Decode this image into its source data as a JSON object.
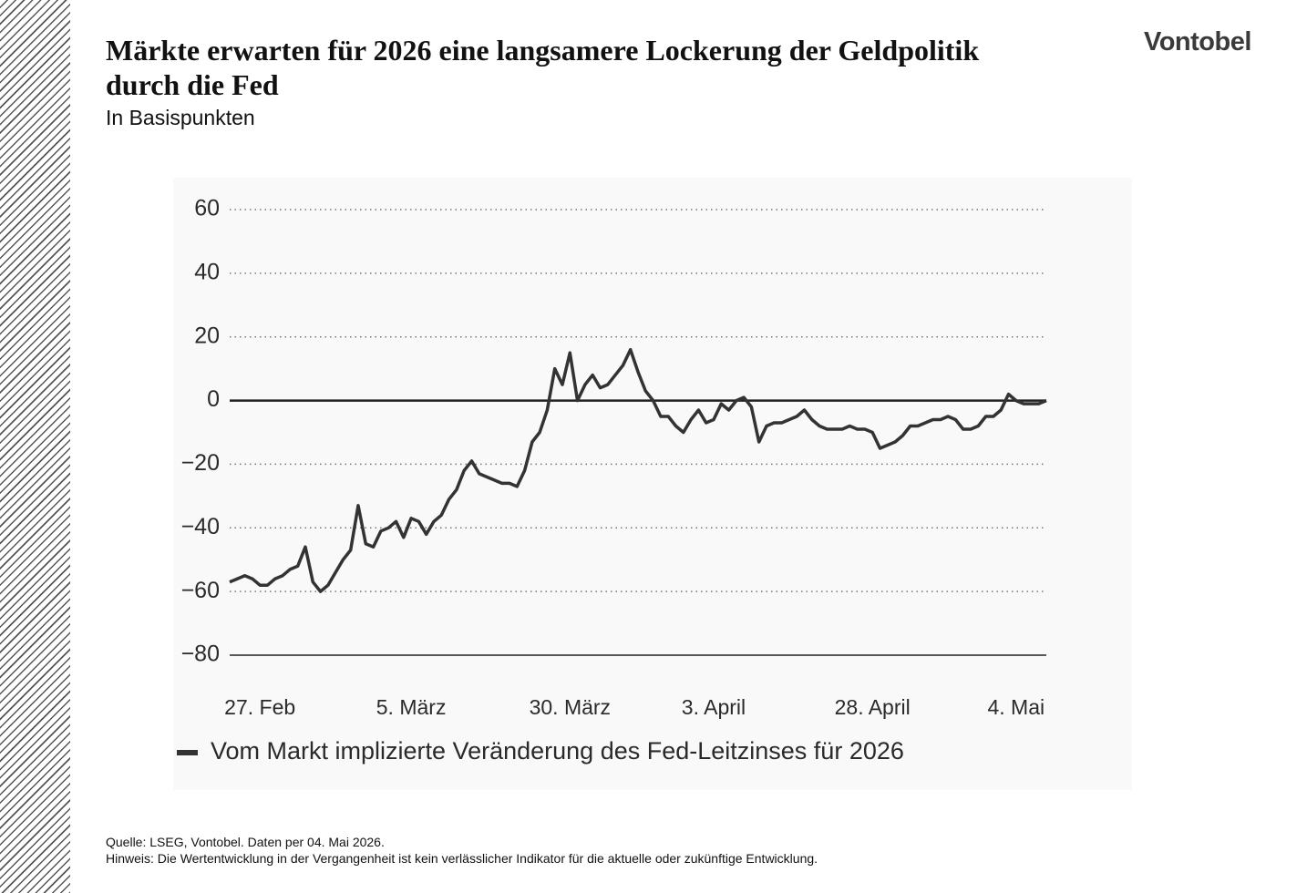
{
  "brand": "Vontobel",
  "chart_data": {
    "type": "line",
    "title": "Märkte erwarten für 2026 eine langsamere Lockerung der Geldpolitik durch die Fed",
    "subtitle": "In Basispunkten",
    "categories": [
      null,
      null,
      null,
      null,
      "27. Feb",
      null,
      null,
      null,
      null,
      null,
      null,
      null,
      null,
      null,
      null,
      null,
      null,
      null,
      null,
      null,
      null,
      null,
      null,
      null,
      "5. März",
      null,
      null,
      null,
      null,
      null,
      null,
      null,
      null,
      null,
      null,
      null,
      null,
      null,
      null,
      null,
      null,
      null,
      null,
      null,
      null,
      "30. März",
      null,
      null,
      null,
      null,
      null,
      null,
      null,
      null,
      null,
      null,
      null,
      null,
      null,
      null,
      null,
      null,
      null,
      null,
      "3. April",
      null,
      null,
      null,
      null,
      null,
      null,
      null,
      null,
      null,
      null,
      null,
      null,
      null,
      null,
      null,
      null,
      null,
      null,
      null,
      null,
      "28. April",
      null,
      null,
      null,
      null,
      null,
      null,
      null,
      null,
      null,
      null,
      null,
      null,
      null,
      null,
      null,
      null,
      null,
      null,
      "4. Mai",
      null,
      null,
      null,
      null
    ],
    "series": [
      {
        "name": "Vom Markt implizierte Veränderung des Fed-Leitzinses für 2026",
        "color": "#333333",
        "values": [
          -57,
          -56,
          -55,
          -56,
          -58,
          -58,
          -56,
          -55,
          -53,
          -52,
          -46,
          -57,
          -60,
          -58,
          -54,
          -50,
          -47,
          -33,
          -45,
          -46,
          -41,
          -40,
          -38,
          -43,
          -37,
          -38,
          -42,
          -38,
          -36,
          -31,
          -28,
          -22,
          -19,
          -23,
          -24,
          -25,
          -26,
          -26,
          -27,
          -22,
          -13,
          -10,
          -3,
          10,
          5,
          15,
          0,
          5,
          8,
          4,
          5,
          8,
          11,
          16,
          9,
          3,
          0,
          -5,
          -5,
          -8,
          -10,
          -6,
          -3,
          -7,
          -6,
          -1,
          -3,
          0,
          1,
          -2,
          -13,
          -8,
          -7,
          -7,
          -6,
          -5,
          -3,
          -6,
          -8,
          -9,
          -9,
          -9,
          -8,
          -9,
          -9,
          -10,
          -15,
          -14,
          -13,
          -11,
          -8,
          -8,
          -7,
          -6,
          -6,
          -5,
          -6,
          -9,
          -9,
          -8,
          -5,
          -5,
          -3,
          2,
          0,
          -1,
          -1,
          -1,
          0
        ]
      }
    ],
    "ylim": [
      -80,
      60
    ],
    "yticks": [
      {
        "value": -80,
        "label": "−80"
      },
      {
        "value": -60,
        "label": "−60"
      },
      {
        "value": -40,
        "label": "−40"
      },
      {
        "value": -20,
        "label": "−20"
      },
      0,
      20,
      40,
      60
    ],
    "grid": true
  },
  "footer": {
    "source": "Quelle: LSEG, Vontobel. Daten per 04. Mai 2026.",
    "note": "Hinweis: Die Wertentwicklung in der Vergangenheit ist kein verlässlicher Indikator für die aktuelle oder zukünftige Entwicklung."
  }
}
